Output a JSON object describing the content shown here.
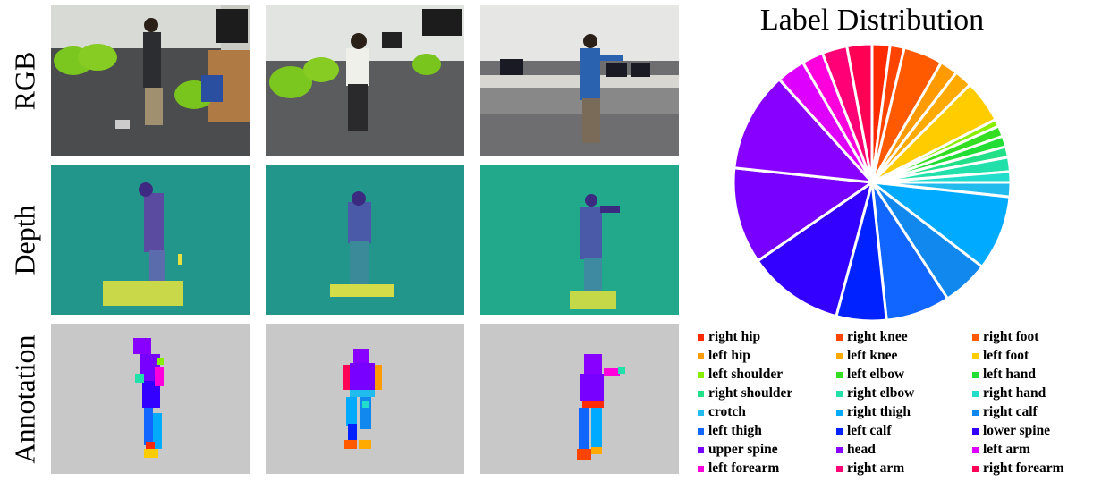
{
  "row_labels": {
    "rgb": "RGB",
    "depth": "Depth",
    "annotation": "Annotation"
  },
  "chart_data": {
    "type": "pie",
    "title": "Label Distribution",
    "categories": [
      "right hip",
      "right knee",
      "right foot",
      "left hip",
      "left knee",
      "left foot",
      "left shoulder",
      "left elbow",
      "left hand",
      "right shoulder",
      "right elbow",
      "right hand",
      "crotch",
      "right thigh",
      "right calf",
      "left thigh",
      "left calf",
      "lower spine",
      "upper spine",
      "head",
      "left arm",
      "left forearm",
      "right arm",
      "right forearm"
    ],
    "values": [
      2.5,
      2.0,
      5.5,
      2.5,
      2.5,
      6.0,
      1.0,
      1.5,
      1.5,
      1.5,
      2.0,
      1.5,
      2.0,
      10.5,
      6.5,
      9.0,
      7.0,
      13.5,
      13.5,
      14.0,
      4.0,
      3.0,
      3.5,
      3.5
    ],
    "colors": [
      "#ff2a00",
      "#ff4400",
      "#ff5a00",
      "#ff9a00",
      "#ffaa00",
      "#ffcc00",
      "#88ee00",
      "#33dd22",
      "#22dd33",
      "#22e088",
      "#22e0aa",
      "#22ddcc",
      "#22bbee",
      "#00aaff",
      "#1188ee",
      "#1166ff",
      "#0022ff",
      "#3300ff",
      "#7700ff",
      "#8800ff",
      "#dd00ff",
      "#ff00dd",
      "#ff0077",
      "#ff0055"
    ],
    "legend_position": "bottom"
  }
}
